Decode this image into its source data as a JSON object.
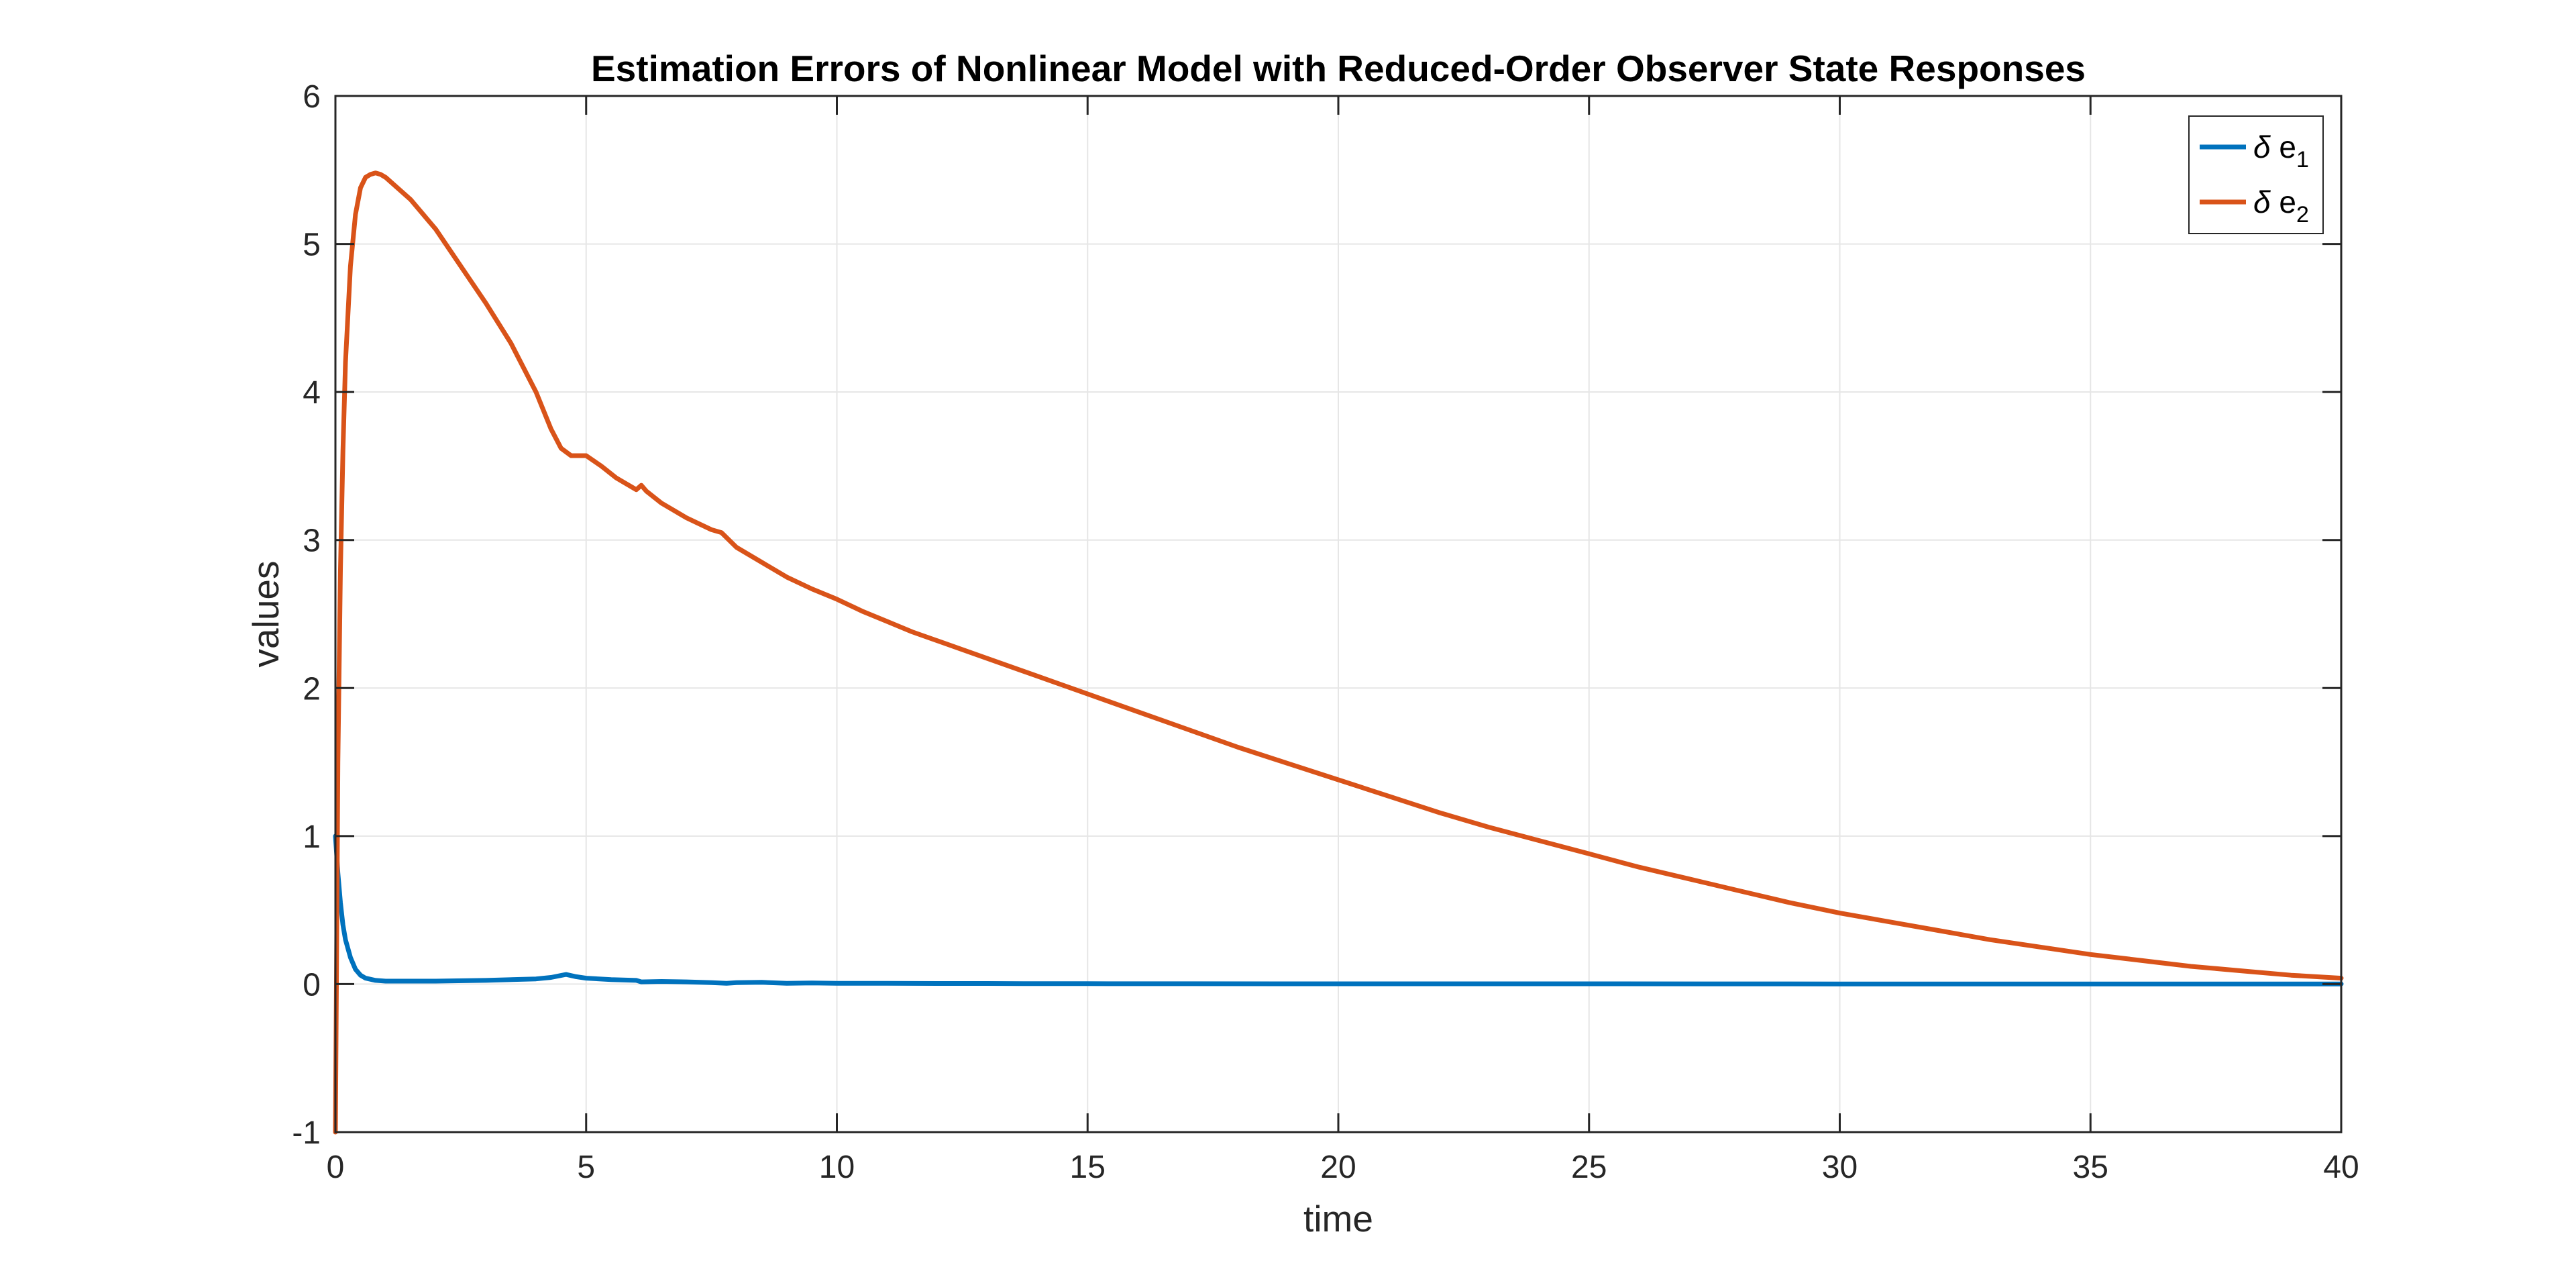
{
  "chart_data": {
    "type": "line",
    "title": "Estimation Errors of Nonlinear Model with Reduced-Order Observer State Responses",
    "xlabel": "time",
    "ylabel": "values",
    "xlim": [
      0,
      40
    ],
    "ylim": [
      -1,
      6
    ],
    "xticks": [
      "0",
      "5",
      "10",
      "15",
      "20",
      "25",
      "30",
      "35",
      "40"
    ],
    "yticks": [
      "-1",
      "0",
      "1",
      "2",
      "3",
      "4",
      "5",
      "6"
    ],
    "grid": true,
    "legend_position": "top-right",
    "series": [
      {
        "name": "δ e1",
        "legend": {
          "symbol": "δ",
          "base": " e",
          "sub": "1"
        },
        "color": "#0072BD",
        "x": [
          0,
          0.05,
          0.1,
          0.15,
          0.2,
          0.3,
          0.4,
          0.5,
          0.6,
          0.8,
          1.0,
          1.5,
          2,
          3,
          4,
          4.3,
          4.6,
          4.8,
          5,
          5.5,
          6,
          6.1,
          6.5,
          7,
          7.5,
          7.8,
          8,
          8.5,
          9,
          9.5,
          10,
          11,
          12,
          13,
          14,
          15,
          20,
          25,
          30,
          35,
          40
        ],
        "y": [
          1.0,
          0.75,
          0.55,
          0.4,
          0.3,
          0.18,
          0.1,
          0.06,
          0.04,
          0.025,
          0.02,
          0.02,
          0.02,
          0.025,
          0.035,
          0.045,
          0.065,
          0.05,
          0.04,
          0.03,
          0.025,
          0.015,
          0.018,
          0.015,
          0.01,
          0.005,
          0.01,
          0.012,
          0.005,
          0.008,
          0.005,
          0.005,
          0.004,
          0.004,
          0.003,
          0.003,
          0.002,
          0.002,
          0.001,
          0.001,
          0.001
        ]
      },
      {
        "name": "δ e2",
        "legend": {
          "symbol": "δ",
          "base": " e",
          "sub": "2"
        },
        "color": "#D95319",
        "x": [
          0,
          0.02,
          0.05,
          0.1,
          0.15,
          0.2,
          0.3,
          0.4,
          0.5,
          0.6,
          0.7,
          0.8,
          0.9,
          1.0,
          1.5,
          2,
          2.5,
          3,
          3.5,
          4,
          4.3,
          4.5,
          4.7,
          5,
          5.3,
          5.6,
          6,
          6.1,
          6.2,
          6.5,
          7,
          7.5,
          7.7,
          8,
          8.5,
          9,
          9.5,
          10,
          10.5,
          11,
          11.5,
          12,
          12.5,
          13,
          14,
          15,
          16,
          17,
          18,
          19,
          20,
          21,
          22,
          23,
          24,
          25,
          26,
          27,
          28,
          29,
          30,
          31,
          32,
          33,
          34,
          35,
          36,
          37,
          38,
          39,
          40
        ],
        "y": [
          -1.0,
          0.0,
          1.5,
          2.8,
          3.6,
          4.2,
          4.85,
          5.2,
          5.38,
          5.45,
          5.47,
          5.48,
          5.47,
          5.45,
          5.3,
          5.1,
          4.85,
          4.6,
          4.33,
          4.0,
          3.75,
          3.62,
          3.57,
          3.57,
          3.5,
          3.42,
          3.34,
          3.37,
          3.33,
          3.25,
          3.15,
          3.07,
          3.05,
          2.95,
          2.85,
          2.75,
          2.67,
          2.6,
          2.52,
          2.45,
          2.38,
          2.32,
          2.26,
          2.2,
          2.08,
          1.96,
          1.84,
          1.72,
          1.6,
          1.49,
          1.38,
          1.27,
          1.16,
          1.06,
          0.97,
          0.88,
          0.79,
          0.71,
          0.63,
          0.55,
          0.48,
          0.42,
          0.36,
          0.3,
          0.25,
          0.2,
          0.16,
          0.12,
          0.09,
          0.06,
          0.04
        ]
      }
    ]
  }
}
